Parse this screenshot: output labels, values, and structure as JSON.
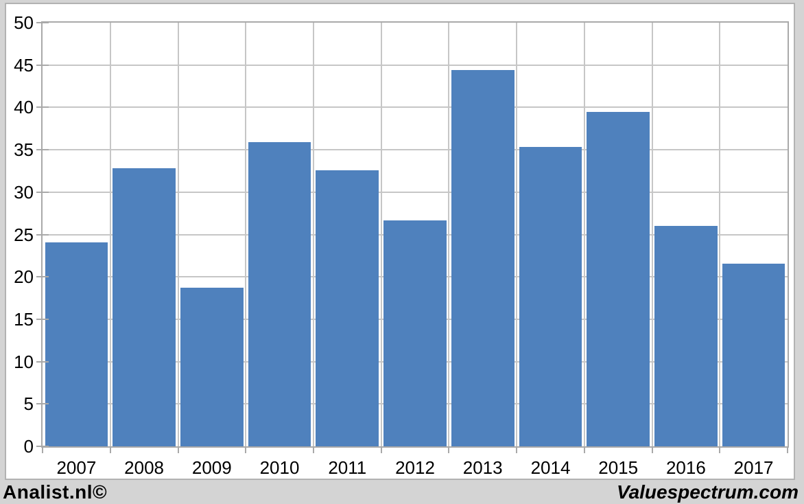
{
  "chart_data": {
    "type": "bar",
    "categories": [
      "2007",
      "2008",
      "2009",
      "2010",
      "2011",
      "2012",
      "2013",
      "2014",
      "2015",
      "2016",
      "2017"
    ],
    "values": [
      24.1,
      32.8,
      18.7,
      35.9,
      32.6,
      26.7,
      44.4,
      35.3,
      39.5,
      26.0,
      21.6
    ],
    "title": "",
    "xlabel": "",
    "ylabel": "",
    "ylim": [
      0,
      50
    ],
    "yticks": [
      0,
      5,
      10,
      15,
      20,
      25,
      30,
      35,
      40,
      45,
      50
    ],
    "grid": true,
    "legend_position": "none",
    "bar_color": "#4f81bd"
  },
  "branding": {
    "left_text": "Analist.nl©",
    "right_text": "Valuespectrum.com"
  }
}
